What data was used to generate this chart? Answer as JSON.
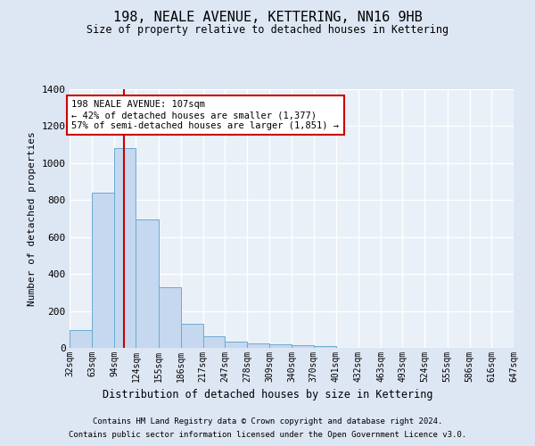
{
  "title": "198, NEALE AVENUE, KETTERING, NN16 9HB",
  "subtitle": "Size of property relative to detached houses in Kettering",
  "xlabel": "Distribution of detached houses by size in Kettering",
  "ylabel": "Number of detached properties",
  "footer_line1": "Contains HM Land Registry data © Crown copyright and database right 2024.",
  "footer_line2": "Contains public sector information licensed under the Open Government Licence v3.0.",
  "annotation_line1": "198 NEALE AVENUE: 107sqm",
  "annotation_line2": "← 42% of detached houses are smaller (1,377)",
  "annotation_line3": "57% of semi-detached houses are larger (1,851) →",
  "property_size": 107,
  "bin_edges": [
    32,
    63,
    94,
    124,
    155,
    186,
    217,
    247,
    278,
    309,
    340,
    370,
    401,
    432,
    463,
    493,
    524,
    555,
    586,
    616,
    647
  ],
  "bin_counts": [
    97,
    840,
    1080,
    693,
    330,
    128,
    61,
    36,
    26,
    18,
    13,
    12,
    0,
    0,
    0,
    0,
    0,
    0,
    0,
    0
  ],
  "bar_color": "#c5d8ef",
  "bar_edge_color": "#6aabcf",
  "red_line_color": "#cc0000",
  "background_color": "#dde6f3",
  "plot_bg_color": "#eaf0f8",
  "grid_color": "#ffffff",
  "ylim": [
    0,
    1400
  ],
  "yticks": [
    0,
    200,
    400,
    600,
    800,
    1000,
    1200,
    1400
  ]
}
